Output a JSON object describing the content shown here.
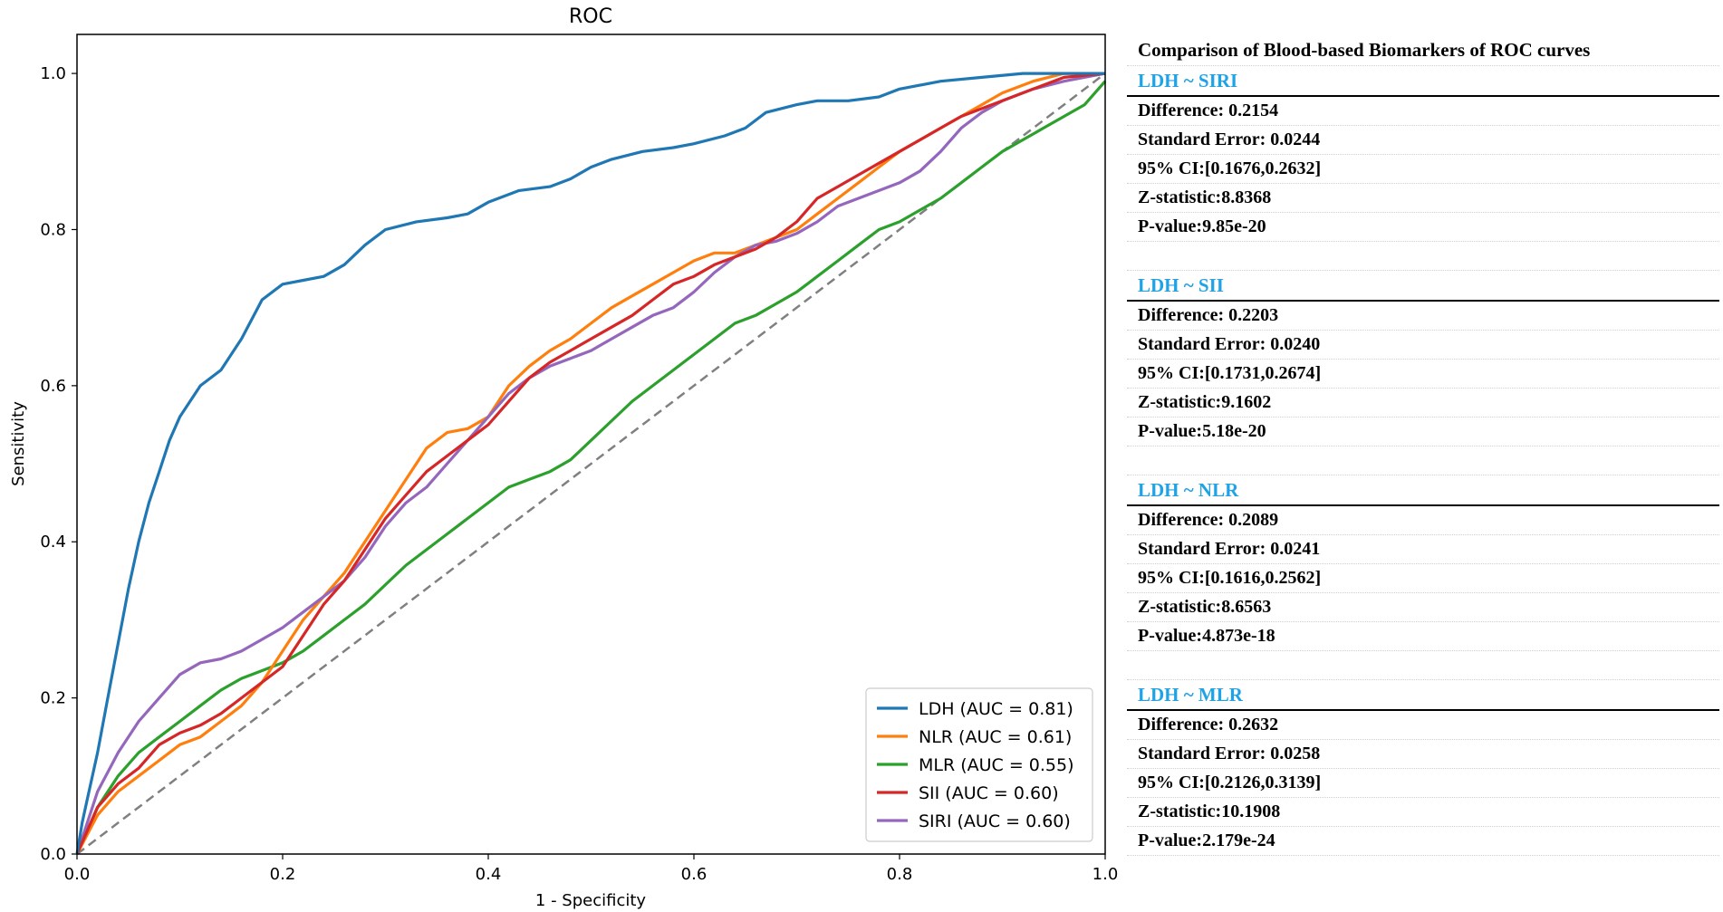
{
  "chart_data": {
    "type": "line",
    "title": "ROC",
    "xlabel": "1 - Specificity",
    "ylabel": "Sensitivity",
    "xlim": [
      0.0,
      1.0
    ],
    "ylim": [
      0.0,
      1.05
    ],
    "xticks": [
      "0.0",
      "0.2",
      "0.4",
      "0.6",
      "0.8",
      "1.0"
    ],
    "yticks": [
      "0.0",
      "0.2",
      "0.4",
      "0.6",
      "0.8",
      "1.0"
    ],
    "legend_position": "lower-right",
    "diagonal": {
      "style": "dashed",
      "color": "#808080"
    },
    "series": [
      {
        "name": "LDH (AUC = 0.81)",
        "color": "#1f77b4",
        "x": [
          0,
          0.005,
          0.01,
          0.02,
          0.03,
          0.04,
          0.05,
          0.06,
          0.07,
          0.08,
          0.09,
          0.1,
          0.12,
          0.14,
          0.16,
          0.18,
          0.2,
          0.22,
          0.24,
          0.26,
          0.28,
          0.3,
          0.33,
          0.36,
          0.38,
          0.4,
          0.43,
          0.46,
          0.48,
          0.5,
          0.52,
          0.55,
          0.58,
          0.6,
          0.63,
          0.65,
          0.67,
          0.7,
          0.72,
          0.75,
          0.78,
          0.8,
          0.84,
          0.88,
          0.92,
          0.96,
          1.0
        ],
        "y": [
          0,
          0.04,
          0.07,
          0.13,
          0.2,
          0.27,
          0.34,
          0.4,
          0.45,
          0.49,
          0.53,
          0.56,
          0.6,
          0.62,
          0.66,
          0.71,
          0.73,
          0.735,
          0.74,
          0.755,
          0.78,
          0.8,
          0.81,
          0.815,
          0.82,
          0.835,
          0.85,
          0.855,
          0.865,
          0.88,
          0.89,
          0.9,
          0.905,
          0.91,
          0.92,
          0.93,
          0.95,
          0.96,
          0.965,
          0.965,
          0.97,
          0.98,
          0.99,
          0.995,
          1.0,
          1.0,
          1.0
        ]
      },
      {
        "name": "NLR (AUC = 0.61)",
        "color": "#ff7f0e",
        "x": [
          0,
          0.02,
          0.04,
          0.06,
          0.08,
          0.1,
          0.12,
          0.14,
          0.16,
          0.18,
          0.2,
          0.22,
          0.24,
          0.26,
          0.28,
          0.3,
          0.32,
          0.34,
          0.36,
          0.38,
          0.4,
          0.42,
          0.44,
          0.46,
          0.48,
          0.5,
          0.52,
          0.54,
          0.56,
          0.58,
          0.6,
          0.62,
          0.64,
          0.66,
          0.68,
          0.7,
          0.72,
          0.74,
          0.76,
          0.78,
          0.8,
          0.82,
          0.84,
          0.86,
          0.88,
          0.9,
          0.93,
          0.96,
          1.0
        ],
        "y": [
          0,
          0.05,
          0.08,
          0.1,
          0.12,
          0.14,
          0.15,
          0.17,
          0.19,
          0.22,
          0.26,
          0.3,
          0.33,
          0.36,
          0.4,
          0.44,
          0.48,
          0.52,
          0.54,
          0.545,
          0.56,
          0.6,
          0.625,
          0.645,
          0.66,
          0.68,
          0.7,
          0.715,
          0.73,
          0.745,
          0.76,
          0.77,
          0.77,
          0.78,
          0.79,
          0.8,
          0.82,
          0.84,
          0.86,
          0.88,
          0.9,
          0.915,
          0.93,
          0.945,
          0.96,
          0.975,
          0.99,
          1.0,
          1.0
        ]
      },
      {
        "name": "MLR (AUC = 0.55)",
        "color": "#2ca02c",
        "x": [
          0,
          0.02,
          0.04,
          0.06,
          0.08,
          0.1,
          0.12,
          0.14,
          0.16,
          0.18,
          0.2,
          0.22,
          0.24,
          0.26,
          0.28,
          0.3,
          0.32,
          0.34,
          0.36,
          0.38,
          0.4,
          0.42,
          0.44,
          0.46,
          0.48,
          0.5,
          0.52,
          0.54,
          0.56,
          0.58,
          0.6,
          0.62,
          0.64,
          0.66,
          0.68,
          0.7,
          0.72,
          0.74,
          0.76,
          0.78,
          0.8,
          0.82,
          0.84,
          0.86,
          0.88,
          0.9,
          0.92,
          0.94,
          0.96,
          0.98,
          1.0
        ],
        "y": [
          0,
          0.06,
          0.1,
          0.13,
          0.15,
          0.17,
          0.19,
          0.21,
          0.225,
          0.235,
          0.245,
          0.26,
          0.28,
          0.3,
          0.32,
          0.345,
          0.37,
          0.39,
          0.41,
          0.43,
          0.45,
          0.47,
          0.48,
          0.49,
          0.505,
          0.53,
          0.555,
          0.58,
          0.6,
          0.62,
          0.64,
          0.66,
          0.68,
          0.69,
          0.705,
          0.72,
          0.74,
          0.76,
          0.78,
          0.8,
          0.81,
          0.825,
          0.84,
          0.86,
          0.88,
          0.9,
          0.915,
          0.93,
          0.945,
          0.96,
          0.99
        ]
      },
      {
        "name": "SII (AUC = 0.60)",
        "color": "#d62728",
        "x": [
          0,
          0.02,
          0.04,
          0.06,
          0.08,
          0.1,
          0.12,
          0.14,
          0.16,
          0.18,
          0.2,
          0.22,
          0.24,
          0.26,
          0.28,
          0.3,
          0.32,
          0.34,
          0.36,
          0.38,
          0.4,
          0.42,
          0.44,
          0.46,
          0.48,
          0.5,
          0.52,
          0.54,
          0.56,
          0.58,
          0.6,
          0.62,
          0.64,
          0.66,
          0.68,
          0.7,
          0.72,
          0.74,
          0.76,
          0.78,
          0.8,
          0.82,
          0.84,
          0.86,
          0.88,
          0.9,
          0.93,
          0.96,
          1.0
        ],
        "y": [
          0,
          0.06,
          0.09,
          0.11,
          0.14,
          0.155,
          0.165,
          0.18,
          0.2,
          0.22,
          0.24,
          0.28,
          0.32,
          0.35,
          0.39,
          0.43,
          0.46,
          0.49,
          0.51,
          0.53,
          0.55,
          0.58,
          0.61,
          0.63,
          0.645,
          0.66,
          0.675,
          0.69,
          0.71,
          0.73,
          0.74,
          0.755,
          0.765,
          0.775,
          0.79,
          0.81,
          0.84,
          0.855,
          0.87,
          0.885,
          0.9,
          0.915,
          0.93,
          0.945,
          0.955,
          0.965,
          0.98,
          0.995,
          1.0
        ]
      },
      {
        "name": "SIRI (AUC = 0.60)",
        "color": "#9467bd",
        "x": [
          0,
          0.02,
          0.04,
          0.06,
          0.08,
          0.1,
          0.12,
          0.14,
          0.16,
          0.18,
          0.2,
          0.22,
          0.24,
          0.26,
          0.28,
          0.3,
          0.32,
          0.34,
          0.36,
          0.38,
          0.4,
          0.42,
          0.44,
          0.46,
          0.48,
          0.5,
          0.52,
          0.54,
          0.56,
          0.58,
          0.6,
          0.62,
          0.64,
          0.66,
          0.68,
          0.7,
          0.72,
          0.74,
          0.76,
          0.78,
          0.8,
          0.82,
          0.84,
          0.86,
          0.88,
          0.9,
          0.93,
          0.96,
          1.0
        ],
        "y": [
          0,
          0.08,
          0.13,
          0.17,
          0.2,
          0.23,
          0.245,
          0.25,
          0.26,
          0.275,
          0.29,
          0.31,
          0.33,
          0.35,
          0.38,
          0.42,
          0.45,
          0.47,
          0.5,
          0.53,
          0.56,
          0.59,
          0.61,
          0.625,
          0.635,
          0.645,
          0.66,
          0.675,
          0.69,
          0.7,
          0.72,
          0.745,
          0.765,
          0.78,
          0.785,
          0.795,
          0.81,
          0.83,
          0.84,
          0.85,
          0.86,
          0.875,
          0.9,
          0.93,
          0.95,
          0.965,
          0.98,
          0.99,
          1.0
        ]
      }
    ]
  },
  "panel": {
    "title": "Comparison of Blood-based Biomarkers of   ROC curves",
    "comparisons": [
      {
        "header": "LDH ~ SIRI",
        "rows": [
          "Difference:  0.2154",
          "Standard Error:  0.0244",
          "95% CI:[0.1676,0.2632]",
          "Z-statistic:8.8368",
          "P-value:9.85e-20"
        ]
      },
      {
        "header": "LDH ~ SII",
        "rows": [
          "Difference:  0.2203",
          "Standard Error:  0.0240",
          "95% CI:[0.1731,0.2674]",
          "Z-statistic:9.1602",
          "P-value:5.18e-20"
        ]
      },
      {
        "header": "LDH ~ NLR",
        "rows": [
          "Difference:  0.2089",
          "Standard Error:  0.0241",
          "95% CI:[0.1616,0.2562]",
          "Z-statistic:8.6563",
          "P-value:4.873e-18"
        ]
      },
      {
        "header": "LDH ~ MLR",
        "rows": [
          "Difference:  0.2632",
          "Standard Error:  0.0258",
          "95% CI:[0.2126,0.3139]",
          "Z-statistic:10.1908",
          "P-value:2.179e-24"
        ]
      }
    ]
  }
}
